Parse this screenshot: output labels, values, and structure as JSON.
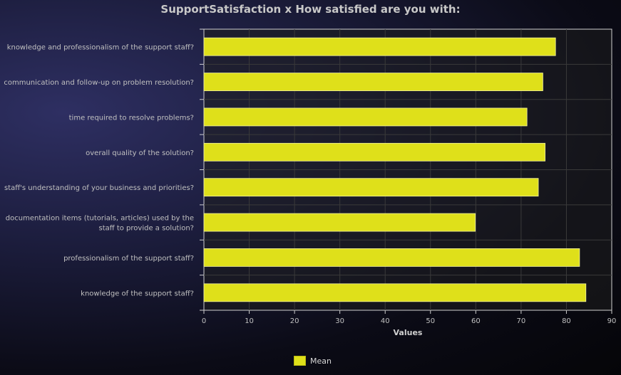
{
  "chart_data": {
    "type": "bar",
    "orientation": "horizontal",
    "title": "SupportSatisfaction x How satisfied are you with:",
    "xlabel": "Values",
    "ylabel": "",
    "xlim": [
      0,
      90
    ],
    "x_ticks": [
      "0",
      "10",
      "20",
      "30",
      "40",
      "50",
      "60",
      "70",
      "80",
      "90"
    ],
    "categories": [
      [
        "knowledge and professionalism of the support staff?"
      ],
      [
        "communication and follow-up on problem resolution?"
      ],
      [
        "time required to resolve problems?"
      ],
      [
        "overall quality of the solution?"
      ],
      [
        "staff's understanding of your business and priorities?"
      ],
      [
        "documentation items (tutorials, articles) used by the",
        "staff to provide a solution?"
      ],
      [
        "professionalism of the support staff?"
      ],
      [
        "knowledge of the support staff?"
      ]
    ],
    "series": [
      {
        "name": "Mean",
        "color": "#dfe01a",
        "values": [
          77.6,
          74.8,
          71.3,
          75.3,
          73.8,
          59.9,
          82.9,
          84.3
        ]
      }
    ],
    "grid": true,
    "legend_position": "bottom-center"
  }
}
